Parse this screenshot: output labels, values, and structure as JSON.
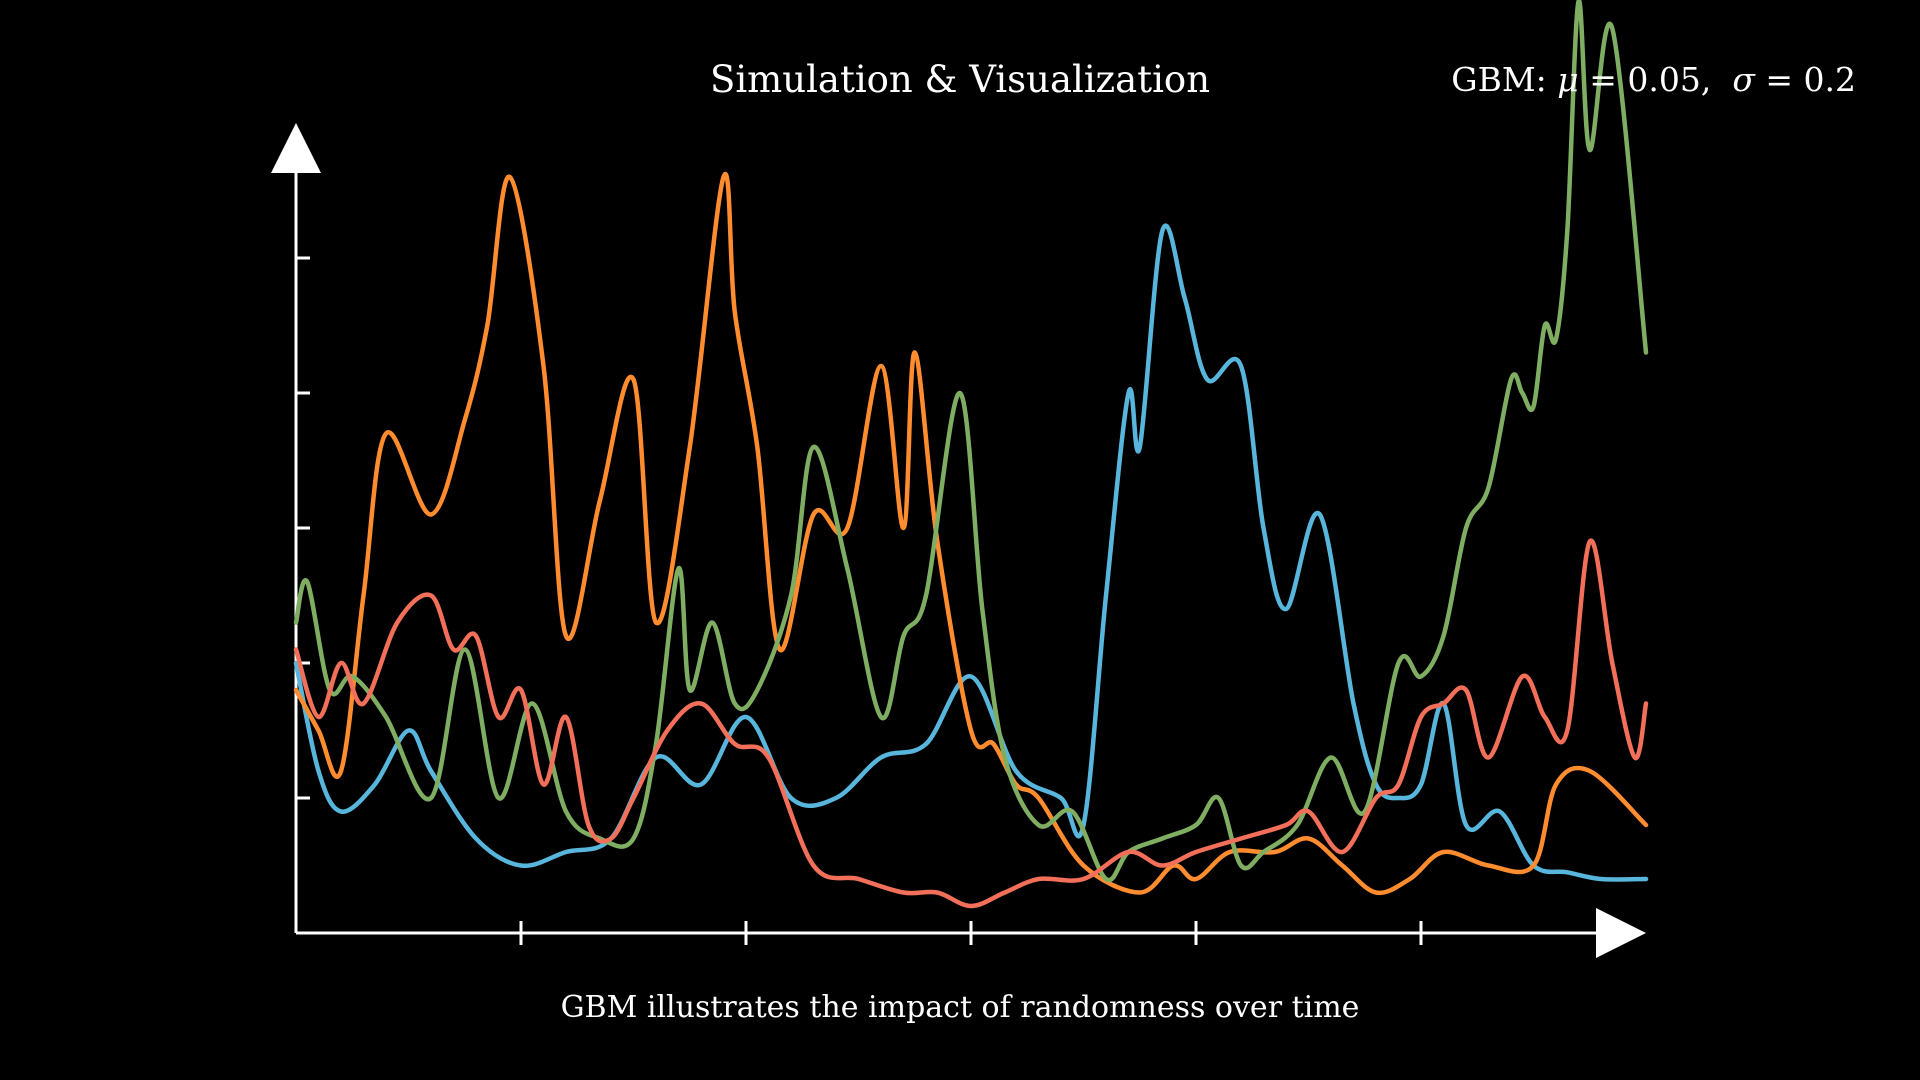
{
  "title": "Simulation & Visualization",
  "subtitle_params": {
    "model": "GBM",
    "mu_symbol": "μ",
    "mu_value": "0.05",
    "sigma_symbol": "σ",
    "sigma_value": "0.2"
  },
  "caption": "GBM illustrates the impact of randomness over time",
  "colors": {
    "background": "#000000",
    "axes": "#ffffff",
    "text": "#ffffff"
  },
  "chart_data": {
    "type": "line",
    "title": "Simulation & Visualization",
    "xlabel": "",
    "ylabel": "",
    "xlim": [
      0,
      6
    ],
    "ylim": [
      0,
      6
    ],
    "x_ticks": [
      1,
      2,
      3,
      4,
      5
    ],
    "y_ticks": [
      1,
      2,
      3,
      4,
      5
    ],
    "grid": false,
    "legend": "none",
    "series": [
      {
        "color": "#58b6dc",
        "x": [
          0,
          0.1,
          0.2,
          0.35,
          0.5,
          0.6,
          0.8,
          1.0,
          1.2,
          1.4,
          1.6,
          1.8,
          2.0,
          2.2,
          2.4,
          2.6,
          2.8,
          3.0,
          3.2,
          3.4,
          3.5,
          3.6,
          3.7,
          3.75,
          3.85,
          3.95,
          4.05,
          4.2,
          4.3,
          4.4,
          4.55,
          4.7,
          4.8,
          4.9,
          5.0,
          5.1,
          5.2,
          5.35,
          5.5,
          5.65,
          5.8,
          6.0
        ],
        "y": [
          2.0,
          1.2,
          0.9,
          1.1,
          1.5,
          1.2,
          0.7,
          0.5,
          0.6,
          0.7,
          1.3,
          1.1,
          1.6,
          1.0,
          1.0,
          1.3,
          1.4,
          1.9,
          1.2,
          1.0,
          0.8,
          2.5,
          4.0,
          3.6,
          5.2,
          4.7,
          4.1,
          4.2,
          3.0,
          2.4,
          3.1,
          1.7,
          1.1,
          1.0,
          1.1,
          1.7,
          0.8,
          0.9,
          0.5,
          0.45,
          0.4,
          0.4
        ]
      },
      {
        "color": "#ff8c2e",
        "x": [
          0,
          0.1,
          0.2,
          0.3,
          0.4,
          0.6,
          0.75,
          0.85,
          0.95,
          1.1,
          1.2,
          1.35,
          1.5,
          1.6,
          1.75,
          1.9,
          1.95,
          2.05,
          2.15,
          2.3,
          2.45,
          2.6,
          2.7,
          2.75,
          2.85,
          3.0,
          3.1,
          3.2,
          3.3,
          3.5,
          3.75,
          3.9,
          4.0,
          4.15,
          4.35,
          4.5,
          4.65,
          4.8,
          4.95,
          5.1,
          5.3,
          5.5,
          5.6,
          5.75,
          6.0
        ],
        "y": [
          1.8,
          1.5,
          1.2,
          2.5,
          3.7,
          3.1,
          3.8,
          4.5,
          5.6,
          4.2,
          2.2,
          3.2,
          4.1,
          2.3,
          3.6,
          5.6,
          4.6,
          3.6,
          2.1,
          3.1,
          3.0,
          4.2,
          3.0,
          4.3,
          2.9,
          1.5,
          1.4,
          1.1,
          1.0,
          0.5,
          0.3,
          0.5,
          0.4,
          0.6,
          0.6,
          0.7,
          0.5,
          0.3,
          0.4,
          0.6,
          0.5,
          0.5,
          1.1,
          1.2,
          0.8
        ]
      },
      {
        "color": "#7fae62",
        "x": [
          0,
          0.05,
          0.15,
          0.25,
          0.4,
          0.6,
          0.75,
          0.9,
          1.05,
          1.2,
          1.35,
          1.5,
          1.6,
          1.7,
          1.75,
          1.85,
          1.95,
          2.05,
          2.2,
          2.3,
          2.45,
          2.6,
          2.7,
          2.8,
          2.95,
          3.05,
          3.15,
          3.3,
          3.45,
          3.6,
          3.7,
          3.85,
          4.0,
          4.1,
          4.2,
          4.3,
          4.45,
          4.6,
          4.75,
          4.9,
          5.0,
          5.1,
          5.2,
          5.3,
          5.4,
          5.45,
          5.5,
          5.55,
          5.6,
          5.65,
          5.7,
          5.75,
          5.85,
          6.0
        ],
        "y": [
          2.3,
          2.6,
          1.8,
          1.9,
          1.6,
          1.0,
          2.1,
          1.0,
          1.7,
          0.9,
          0.7,
          0.7,
          1.4,
          2.7,
          1.8,
          2.3,
          1.7,
          1.8,
          2.5,
          3.6,
          2.7,
          1.6,
          2.2,
          2.5,
          4.0,
          2.4,
          1.3,
          0.8,
          0.9,
          0.4,
          0.6,
          0.7,
          0.8,
          1.0,
          0.5,
          0.6,
          0.8,
          1.3,
          0.9,
          2.0,
          1.9,
          2.2,
          3.0,
          3.3,
          4.1,
          4.0,
          3.9,
          4.5,
          4.4,
          5.2,
          6.9,
          5.8,
          6.7,
          4.3
        ]
      },
      {
        "color": "#f26f5a",
        "x": [
          0,
          0.1,
          0.2,
          0.3,
          0.45,
          0.6,
          0.7,
          0.8,
          0.9,
          1.0,
          1.1,
          1.2,
          1.3,
          1.4,
          1.5,
          1.65,
          1.8,
          1.95,
          2.1,
          2.3,
          2.5,
          2.7,
          2.85,
          3.0,
          3.15,
          3.3,
          3.5,
          3.7,
          3.85,
          4.0,
          4.2,
          4.4,
          4.5,
          4.65,
          4.8,
          4.9,
          5.0,
          5.1,
          5.2,
          5.3,
          5.45,
          5.55,
          5.65,
          5.75,
          5.85,
          5.95,
          6.0
        ],
        "y": [
          2.1,
          1.6,
          2.0,
          1.7,
          2.3,
          2.5,
          2.1,
          2.2,
          1.6,
          1.8,
          1.1,
          1.6,
          0.8,
          0.7,
          1.0,
          1.5,
          1.7,
          1.4,
          1.3,
          0.5,
          0.4,
          0.3,
          0.3,
          0.2,
          0.3,
          0.4,
          0.4,
          0.6,
          0.5,
          0.6,
          0.7,
          0.8,
          0.9,
          0.6,
          1.0,
          1.1,
          1.6,
          1.7,
          1.8,
          1.3,
          1.9,
          1.6,
          1.5,
          2.9,
          2.0,
          1.3,
          1.7
        ]
      }
    ]
  }
}
